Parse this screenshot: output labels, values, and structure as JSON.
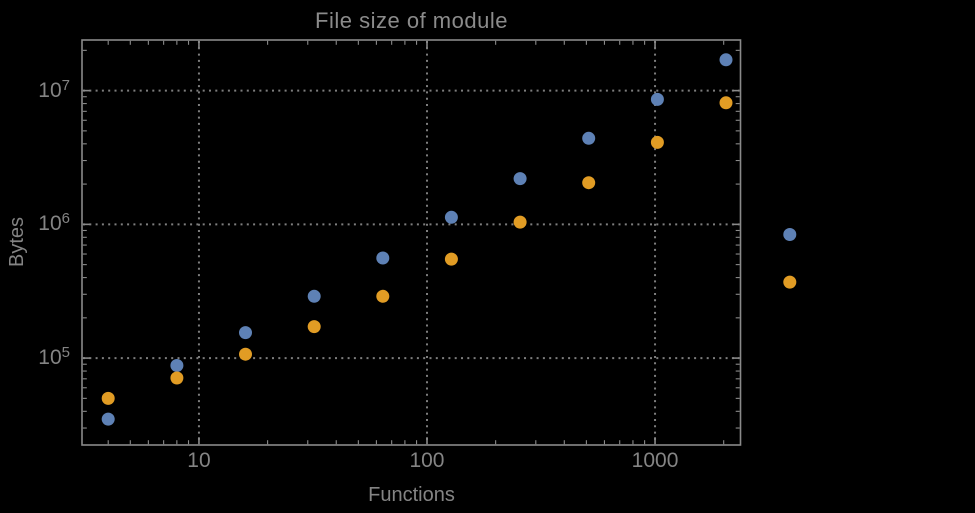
{
  "chart_data": {
    "type": "scatter",
    "title": "File size of module",
    "xlabel": "Functions",
    "ylabel": "Bytes",
    "x_scale": "log",
    "y_scale": "log",
    "grid": "dotted",
    "legend_position": "none",
    "x_range": [
      3.07,
      2370
    ],
    "y_range": [
      22400,
      23900000
    ],
    "x_ticks": [
      {
        "value": 10,
        "label": "10"
      },
      {
        "value": 100,
        "label": "100"
      },
      {
        "value": 1000,
        "label": "1000"
      }
    ],
    "y_ticks": [
      {
        "value": 100000,
        "base": "10",
        "exp": "5"
      },
      {
        "value": 1000000,
        "base": "10",
        "exp": "6"
      },
      {
        "value": 10000000,
        "base": "10",
        "exp": "7"
      }
    ],
    "x": [
      4,
      8,
      16,
      32,
      64,
      128,
      256,
      512,
      1024,
      2048,
      3900
    ],
    "series": [
      {
        "name": "blue",
        "color": "#5e81b5",
        "values": [
          35000,
          88000,
          155000,
          290000,
          560000,
          1130000,
          2200000,
          4400000,
          8600000,
          17000000,
          840000
        ]
      },
      {
        "name": "orange",
        "color": "#e19c24",
        "values": [
          50000,
          71000,
          107000,
          172000,
          290000,
          550000,
          1040000,
          2050000,
          4100000,
          8100000,
          370000
        ]
      }
    ],
    "colors": {
      "background": "#000000",
      "frame": "#8a8a8a",
      "grid": "#7e7e7e",
      "text": "#848484"
    }
  }
}
